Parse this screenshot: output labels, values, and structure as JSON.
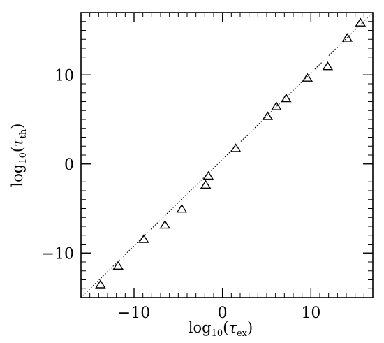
{
  "chart_data": {
    "type": "scatter",
    "title": "",
    "xlabel": {
      "prefix": "log",
      "base": "10",
      "open": "(",
      "symbol": "τ",
      "sub": "ex",
      "close": ")"
    },
    "ylabel": {
      "prefix": "log",
      "base": "10",
      "open": "(",
      "symbol": "τ",
      "sub": "th",
      "close": ")"
    },
    "xlim": [
      -16,
      17
    ],
    "ylim": [
      -15,
      17
    ],
    "x_ticks": [
      {
        "value": -10,
        "label": "−10"
      },
      {
        "value": 0,
        "label": "0"
      },
      {
        "value": 10,
        "label": "10"
      }
    ],
    "y_ticks": [
      {
        "value": -10,
        "label": "−10"
      },
      {
        "value": 0,
        "label": "0"
      },
      {
        "value": 10,
        "label": "10"
      }
    ],
    "minor_tick_step": 1,
    "grid": false,
    "marker": "triangle-open",
    "reference_line": {
      "style": "dotted",
      "x": [
        -16,
        17
      ],
      "y": [
        -15,
        17
      ]
    },
    "points": [
      {
        "x": -13.8,
        "y": -13.6
      },
      {
        "x": -11.8,
        "y": -11.5
      },
      {
        "x": -8.9,
        "y": -8.5
      },
      {
        "x": -6.5,
        "y": -6.9
      },
      {
        "x": -4.6,
        "y": -5.1
      },
      {
        "x": -1.9,
        "y": -2.4
      },
      {
        "x": -1.6,
        "y": -1.4
      },
      {
        "x": 1.5,
        "y": 1.7
      },
      {
        "x": 5.1,
        "y": 5.3
      },
      {
        "x": 6.1,
        "y": 6.4
      },
      {
        "x": 7.2,
        "y": 7.3
      },
      {
        "x": 9.6,
        "y": 9.6
      },
      {
        "x": 11.9,
        "y": 10.9
      },
      {
        "x": 14.1,
        "y": 14.1
      },
      {
        "x": 15.6,
        "y": 15.8
      }
    ]
  }
}
